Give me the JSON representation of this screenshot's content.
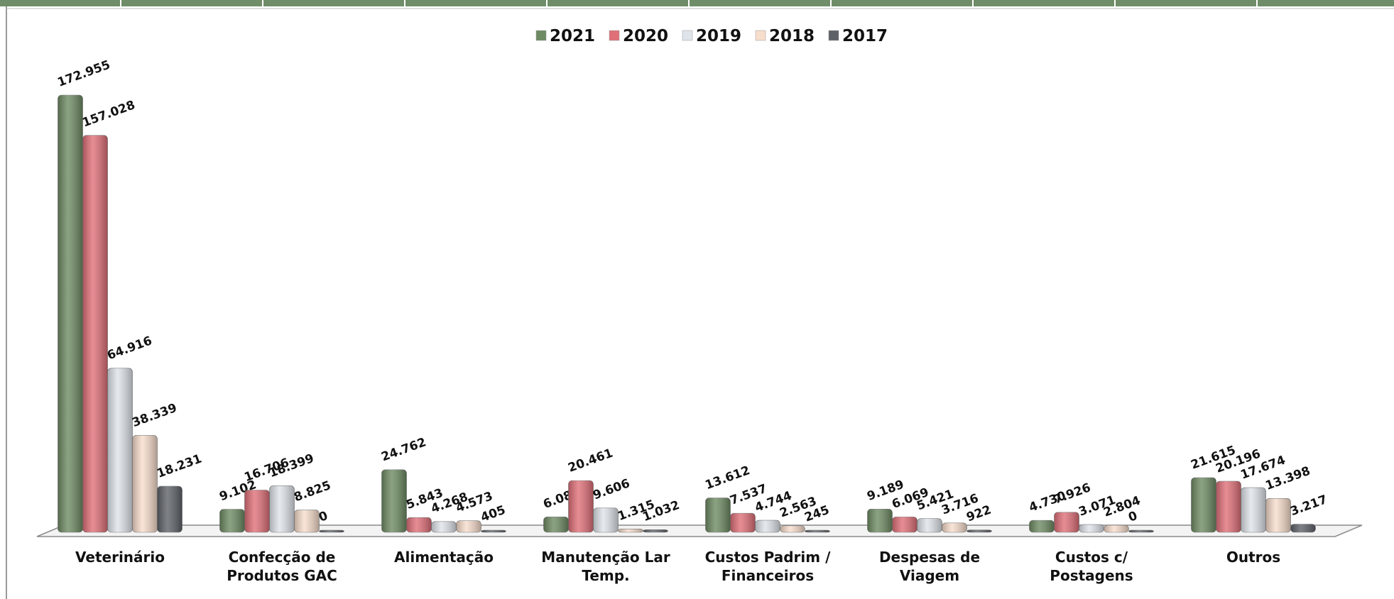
{
  "chart_data": {
    "type": "bar",
    "categories": [
      "Veterinário",
      "Confecção de Produtos GAC",
      "Alimentação",
      "Manutenção Lar Temp.",
      "Custos Padrim / Financeiros",
      "Despesas de Viagem",
      "Custos c/ Postagens",
      "Outros"
    ],
    "series": [
      {
        "name": "2021",
        "color": "#6e8b63",
        "values": [
          172955,
          9102,
          24762,
          6089,
          13612,
          9189,
          4730,
          21615
        ],
        "value_labels": [
          "172.955",
          "9.102",
          "24.762",
          "6.089",
          "13.612",
          "9.189",
          "4.730",
          "21.615"
        ]
      },
      {
        "name": "2020",
        "color": "#df7078",
        "values": [
          157028,
          16706,
          5843,
          20461,
          7537,
          6069,
          7926,
          20196
        ],
        "value_labels": [
          "157.028",
          "16.706",
          "5.843",
          "20.461",
          "7.537",
          "6.069",
          "7.926",
          "20.196"
        ]
      },
      {
        "name": "2019",
        "color": "#dfe4ea",
        "values": [
          64916,
          18399,
          4268,
          9606,
          4744,
          5421,
          3071,
          17674
        ],
        "value_labels": [
          "64.916",
          "18.399",
          "4.268",
          "9.606",
          "4.744",
          "5.421",
          "3.071",
          "17.674"
        ]
      },
      {
        "name": "2018",
        "color": "#f7ddcc",
        "values": [
          38339,
          8825,
          4573,
          1315,
          2563,
          3716,
          2804,
          13398
        ],
        "value_labels": [
          "38.339",
          "8.825",
          "4.573",
          "1.315",
          "2.563",
          "3.716",
          "2.804",
          "13.398"
        ]
      },
      {
        "name": "2017",
        "color": "#5d6167",
        "values": [
          18231,
          0,
          405,
          1032,
          245,
          922,
          0,
          3217
        ],
        "value_labels": [
          "18.231",
          "0",
          "405",
          "1.032",
          "245",
          "922",
          "0",
          "3.217"
        ]
      }
    ]
  }
}
